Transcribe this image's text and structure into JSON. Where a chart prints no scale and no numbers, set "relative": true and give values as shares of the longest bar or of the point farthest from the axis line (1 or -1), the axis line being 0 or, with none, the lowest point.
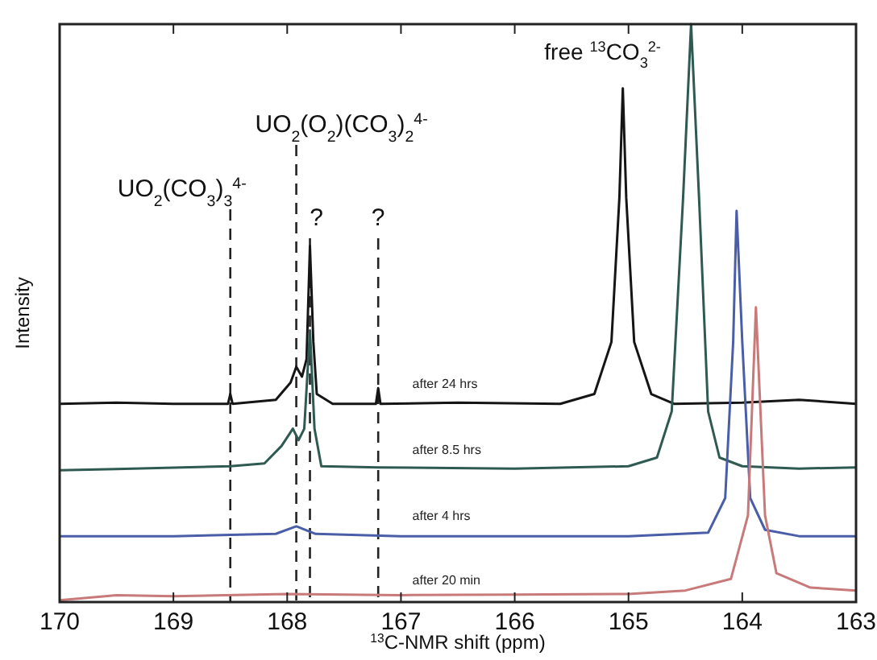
{
  "chart_data": {
    "type": "line",
    "relative": true,
    "xlabel": "$^{13}$C-NMR shift (ppm)",
    "ylabel": "Intensity",
    "xlim": [
      170,
      163
    ],
    "xticks": [
      170,
      169,
      168,
      167,
      166,
      165,
      164,
      163
    ],
    "grid": false,
    "marker": "none",
    "line_style": "solid",
    "series": [
      {
        "name": "after 24 hrs",
        "color": "#151515",
        "x": [
          170,
          169.5,
          169,
          168.52,
          168.5,
          168.48,
          168.1,
          167.97,
          167.92,
          167.87,
          167.83,
          167.8,
          167.77,
          167.74,
          167.6,
          167.22,
          167.2,
          167.18,
          166.5,
          165.6,
          165.3,
          165.15,
          165.08,
          165.05,
          165.02,
          164.95,
          164.8,
          164.6,
          164,
          163.5,
          163
        ],
        "values": [
          0.343,
          0.345,
          0.343,
          0.343,
          0.36,
          0.343,
          0.35,
          0.38,
          0.407,
          0.39,
          0.42,
          0.616,
          0.45,
          0.36,
          0.343,
          0.343,
          0.37,
          0.343,
          0.345,
          0.343,
          0.36,
          0.45,
          0.7,
          0.889,
          0.7,
          0.45,
          0.36,
          0.343,
          0.345,
          0.35,
          0.343
        ]
      },
      {
        "name": "after 8.5 hrs",
        "color": "#2f5a52",
        "x": [
          170,
          169.5,
          168.5,
          168.2,
          168.05,
          167.95,
          167.9,
          167.85,
          167.8,
          167.76,
          167.7,
          167.2,
          166,
          165,
          164.75,
          164.62,
          164.52,
          164.45,
          164.38,
          164.3,
          164.2,
          164,
          163.5,
          163
        ],
        "values": [
          0.228,
          0.23,
          0.235,
          0.24,
          0.27,
          0.3,
          0.28,
          0.3,
          0.47,
          0.3,
          0.235,
          0.233,
          0.231,
          0.235,
          0.25,
          0.33,
          0.7,
          1,
          0.7,
          0.33,
          0.25,
          0.235,
          0.231,
          0.233
        ]
      },
      {
        "name": "after 4 hrs",
        "color": "#4a5ea8",
        "x": [
          170,
          169,
          168.1,
          167.92,
          167.75,
          167,
          165,
          164.3,
          164.15,
          164.08,
          164.05,
          164,
          163.93,
          163.8,
          163.5,
          163
        ],
        "values": [
          0.114,
          0.114,
          0.118,
          0.131,
          0.118,
          0.114,
          0.114,
          0.12,
          0.18,
          0.45,
          0.677,
          0.45,
          0.18,
          0.125,
          0.114,
          0.114
        ]
      },
      {
        "name": "after 20 min",
        "color": "#c87a7a",
        "x": [
          170,
          169.5,
          169,
          168,
          167,
          166,
          165,
          164.5,
          164.1,
          163.95,
          163.88,
          163.8,
          163.7,
          163.4,
          163
        ],
        "values": [
          0.003,
          0.012,
          0.01,
          0.014,
          0.012,
          0.013,
          0.014,
          0.02,
          0.04,
          0.15,
          0.51,
          0.15,
          0.05,
          0.025,
          0.02
        ]
      }
    ],
    "ref_lines": [
      {
        "axis": "x",
        "value": 168.5,
        "label": "UO$_{2}$(CO$_{3}$)$_{3}$$^{4-}$",
        "color": "#222222",
        "line_style": "dashed"
      },
      {
        "axis": "x",
        "value": 167.92,
        "label": "UO$_{2}$(O$_{2}$)(CO$_{3}$)$_{2}$$^{4-}$",
        "color": "#222222",
        "line_style": "dashed"
      },
      {
        "axis": "x",
        "value": 167.8,
        "label": "?",
        "color": "#222222",
        "line_style": "dashed"
      },
      {
        "axis": "x",
        "value": 167.2,
        "label": "?",
        "color": "#222222",
        "line_style": "dashed"
      }
    ],
    "annotations": [
      "free $^{13}$CO$_{3}$$^{2-}$"
    ]
  }
}
